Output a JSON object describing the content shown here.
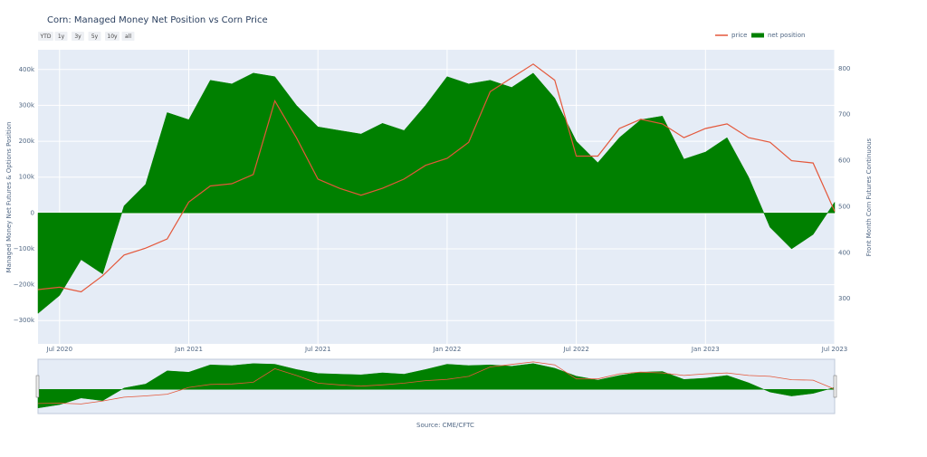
{
  "title": "Corn: Managed Money Net Position vs Corn Price",
  "range_buttons": [
    "YTD",
    "1y",
    "3y",
    "5y",
    "10y",
    "all"
  ],
  "source": "Source: CME/CFTC",
  "chart_data": {
    "type": "area-line",
    "x": [
      "2020-06",
      "2020-07",
      "2020-08",
      "2020-09",
      "2020-10",
      "2020-11",
      "2020-12",
      "2021-01",
      "2021-02",
      "2021-03",
      "2021-04",
      "2021-05",
      "2021-06",
      "2021-07",
      "2021-08",
      "2021-09",
      "2021-10",
      "2021-11",
      "2021-12",
      "2022-01",
      "2022-02",
      "2022-03",
      "2022-04",
      "2022-05",
      "2022-06",
      "2022-07",
      "2022-08",
      "2022-09",
      "2022-10",
      "2022-11",
      "2022-12",
      "2023-01",
      "2023-02",
      "2023-03",
      "2023-04",
      "2023-05",
      "2023-06",
      "2023-07"
    ],
    "xlim": [
      "2020-06",
      "2023-07"
    ],
    "xticks": [
      {
        "value": "2020-07",
        "label": "Jul 2020"
      },
      {
        "value": "2021-01",
        "label": "Jan 2021"
      },
      {
        "value": "2021-07",
        "label": "Jul 2021"
      },
      {
        "value": "2022-01",
        "label": "Jan 2022"
      },
      {
        "value": "2022-07",
        "label": "Jul 2022"
      },
      {
        "value": "2023-01",
        "label": "Jan 2023"
      },
      {
        "value": "2023-07",
        "label": "Jul 2023"
      }
    ],
    "y_label": "Managed Money Net Futures & Options Position",
    "y2_label": "Front Month Corn Futures Continuous",
    "ylim": [
      -365000,
      455000
    ],
    "yticks": [
      {
        "value": -300000,
        "label": "−300k"
      },
      {
        "value": -200000,
        "label": "−200k"
      },
      {
        "value": -100000,
        "label": "−100k"
      },
      0,
      {
        "value": 100000,
        "label": "100k"
      },
      {
        "value": 200000,
        "label": "200k"
      },
      {
        "value": 300000,
        "label": "300k"
      },
      {
        "value": 400000,
        "label": "400k"
      }
    ],
    "y2lim": [
      202,
      841
    ],
    "y2ticks": [
      300,
      400,
      500,
      600,
      700,
      800
    ],
    "grid": true,
    "legend": "top-right",
    "series": [
      {
        "name": "price",
        "kind": "line",
        "axis": "y2",
        "color": "#e4573a",
        "values": [
          320,
          325,
          315,
          350,
          395,
          410,
          430,
          510,
          545,
          550,
          570,
          730,
          650,
          560,
          540,
          525,
          540,
          560,
          590,
          605,
          640,
          750,
          780,
          810,
          775,
          610,
          610,
          670,
          690,
          680,
          650,
          670,
          680,
          650,
          640,
          600,
          595,
          490
        ]
      },
      {
        "name": "net position",
        "kind": "area",
        "color": "#008000",
        "values": [
          -280000,
          -230000,
          -130000,
          -170000,
          20000,
          80000,
          280000,
          260000,
          370000,
          360000,
          390000,
          380000,
          300000,
          240000,
          230000,
          220000,
          250000,
          230000,
          300000,
          380000,
          360000,
          370000,
          350000,
          390000,
          320000,
          200000,
          140000,
          210000,
          260000,
          270000,
          150000,
          170000,
          210000,
          100000,
          -40000,
          -100000,
          -60000,
          30000
        ]
      }
    ]
  }
}
